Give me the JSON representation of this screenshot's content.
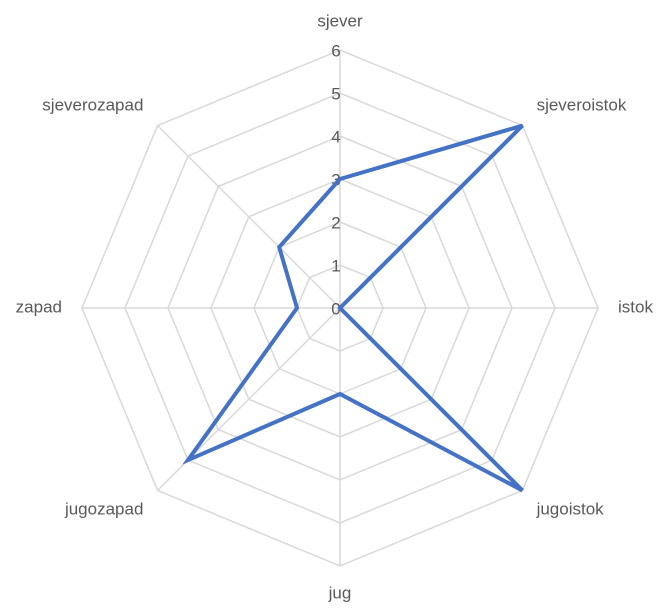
{
  "chart_data": {
    "type": "radar",
    "categories": [
      "sjever",
      "sjeveroistok",
      "istok",
      "jugoistok",
      "jug",
      "jugozapad",
      "zapad",
      "sjeverozapad"
    ],
    "values": [
      3,
      6,
      0,
      6,
      2,
      5,
      1,
      2
    ],
    "color": "#4472c4",
    "ylim": [
      0,
      6
    ],
    "yticks": [
      0,
      1,
      2,
      3,
      4,
      5,
      6
    ],
    "grid": true
  }
}
